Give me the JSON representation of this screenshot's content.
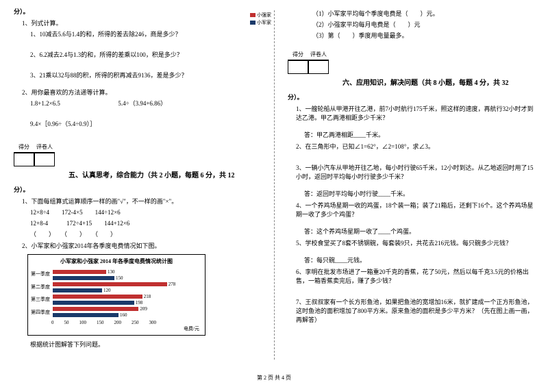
{
  "left": {
    "fen": "分）。",
    "p1": "1、列式计算。",
    "p1_1": "1、10减去5.6与1.4的和，所得的差去除246，商是多少？",
    "p1_2": "2、6.2减去2.4与1.3的和，所得的差乘以100，积是多少？",
    "p1_3": "3、21乘以32与88的积，所得的积再减去9136，差是多少？",
    "p2": "2、用你最喜欢的方法递等计算。",
    "p2_1a": "1.8+1.2×6.5",
    "p2_1b": "5.4÷（3.94+6.86）",
    "p2_2": "9.4×［0.96÷（5.4÷0.9）］",
    "score_a": "得分",
    "score_b": "评卷人",
    "sec5_title": "五、认真思考，综合能力（共 2 小题，每题 6 分，共 12",
    "fen2": "分）。",
    "q1": "1、下面每组算式运算顺序一样的画\"√\"，不一样的画\"×\"。",
    "q1_r1a": "12×8÷4",
    "q1_r1b": "172-4×5",
    "q1_r1c": "144÷12×6",
    "q1_r2a": "12+8-4",
    "q1_r2b": "172÷4+15",
    "q1_r2c": "144+12×6",
    "q1_r3": "（　　）　　（　　）　　（　　）",
    "q2": "2、小军家和小强家2014年各季度电费情况如下图。",
    "chart": {
      "title": "小军家和小强家 2014 年各季度电费情况统计图",
      "legend_a": "小强家",
      "legend_b": "小军家",
      "color_a": "#c03030",
      "color_b": "#1a3a6a",
      "ylabels": [
        "第一季度",
        "第二季度",
        "第三季度",
        "第四季度"
      ],
      "data_a": [
        130,
        278,
        218,
        209
      ],
      "data_b": [
        150,
        120,
        198,
        160
      ],
      "xticks": [
        "0",
        "50",
        "100",
        "150",
        "200",
        "250",
        "300"
      ],
      "xlabel": "电费/元",
      "xmax": 300
    },
    "chart_note": "根据统计图解答下列问题。"
  },
  "right": {
    "sub1": "（1）小军家平均每个季度电费是（　　）元。",
    "sub2": "（2）小强家平均每月电费是（　　）元",
    "sub3": "（3）第（　　）季度用电量最多。",
    "score_a": "得分",
    "score_b": "评卷人",
    "sec6_title": "六、应用知识，解决问题（共 8 小题，每题 4 分，共 32",
    "fen": "分）。",
    "q1": "1、一艘轮船从甲港开往乙港，前7小时航行175千米，照这样的速度，再航行32小时才到达乙港。甲乙两港相距多少千米？",
    "a1": "答：甲乙两港相距____千米。",
    "q2": "2、在三角形中，已知∠1=62°，∠2=108°，求∠3。",
    "q3": "3、一辆小汽车从甲地开往乙地，每小时行驶65千米，12小时到达。从乙地返回时用了15小时，返回时平均每小时行驶多少千米？",
    "a3": "答：返回时平均每小时行驶____千米。",
    "q4": "4、一个养鸡场星期一收的鸡蛋，18个装一箱；装了21箱后，还剩下16个。这个养鸡场星期一收了多少个鸡蛋？",
    "a4": "答：这个养鸡场星期一收了____个鸡蛋。",
    "q5": "5、学校食堂买了8套不锈钢碗，每套装9只，共花去216元钱。每只碗多少元钱？",
    "a5": "答：每只碗____元钱。",
    "q6": "6、李明在批发市场进了一箱重20千克的香蕉，花了50元，然后以每千克3.5元的价格出售，一箱香蕉卖完后，赚了多少钱？",
    "q7": "7、王叔叔家有一个长方形鱼池，如果把鱼池的宽增加16米，就扩建成一个正方形鱼池，这时鱼池的面积增加了800平方米。原来鱼池的面积是多少平方米？（先在图上画一画，再解答）"
  },
  "footer": "第 2 页 共 4 页"
}
